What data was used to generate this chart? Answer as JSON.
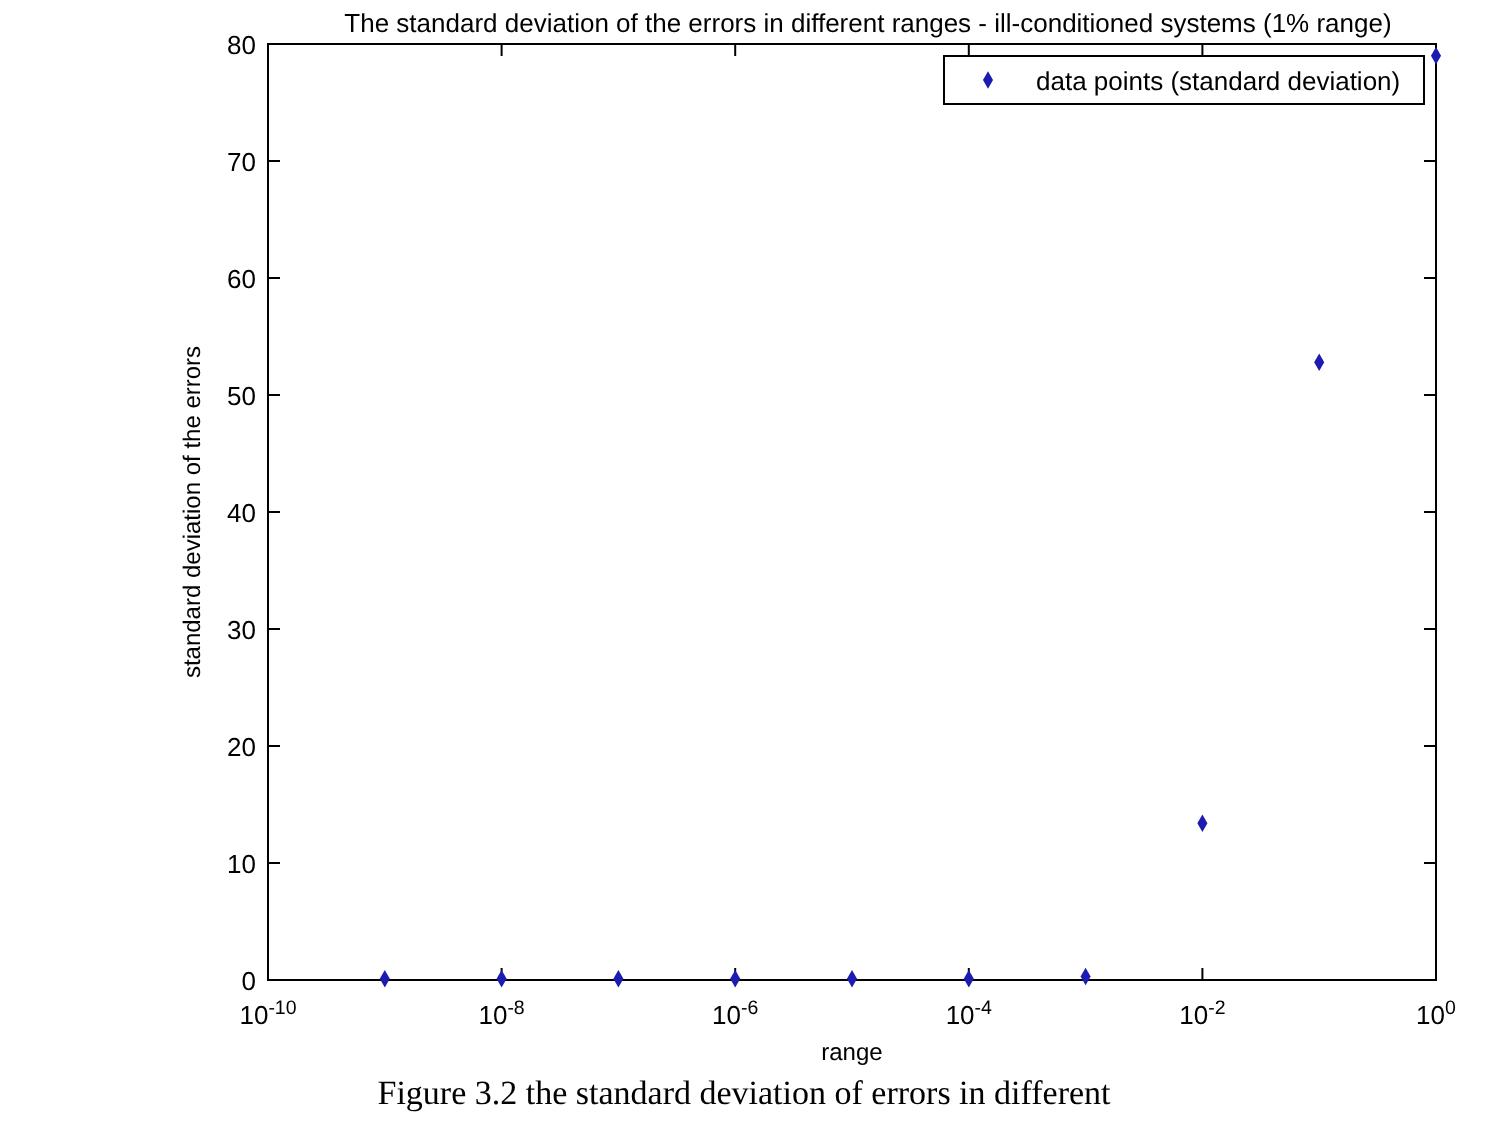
{
  "chart_data": {
    "type": "scatter",
    "title": "The standard deviation of the errors in different ranges - ill-conditioned systems (1% range)",
    "xlabel": "range",
    "ylabel": "standard deviation of the errors",
    "x": [
      1e-09,
      1e-08,
      1e-07,
      1e-06,
      1e-05,
      0.0001,
      0.001,
      0.01,
      0.1,
      1
    ],
    "series": [
      {
        "name": "data points (standard deviation)",
        "color": "#1c1cb0",
        "values": [
          0.1,
          0.1,
          0.1,
          0.1,
          0.1,
          0.1,
          0.3,
          13.4,
          52.8,
          79
        ]
      }
    ],
    "log": "x",
    "xlim": [
      1e-10,
      1
    ],
    "ylim": [
      0,
      80
    ],
    "xticks": [
      {
        "value": 1e-10,
        "label": "10$^{-10}$"
      },
      {
        "value": 1e-08,
        "label": "10$^{-8}$"
      },
      {
        "value": 1e-06,
        "label": "10$^{-6}$"
      },
      {
        "value": 0.0001,
        "label": "10$^{-4}$"
      },
      {
        "value": 0.01,
        "label": "10$^{-2}$"
      },
      {
        "value": 1,
        "label": "10$^{0}$"
      }
    ],
    "yticks": [
      0,
      10,
      20,
      30,
      40,
      50,
      60,
      70,
      80
    ],
    "marker": "diamond",
    "legend": "top right",
    "grid": false,
    "annotations": [
      "Figure 3.2 the standard deviation of errors in different"
    ]
  }
}
